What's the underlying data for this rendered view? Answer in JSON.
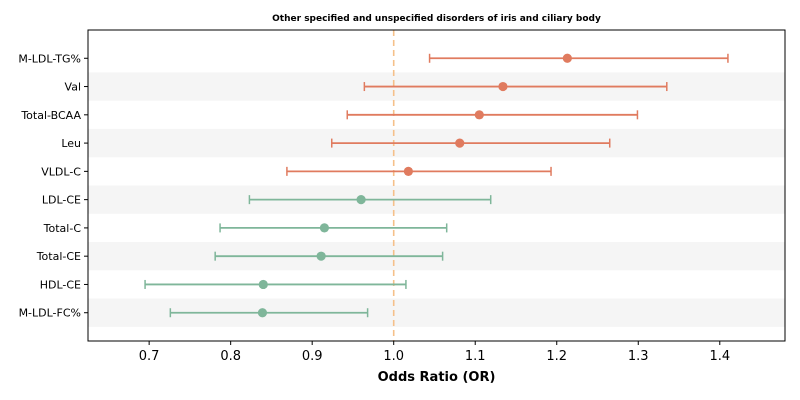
{
  "chart_data": {
    "type": "forest",
    "title": "Other specified and unspecified disorders of iris and ciliary body",
    "xlabel": "Odds Ratio (OR)",
    "ylabel": "",
    "xlim": [
      0.625,
      1.48
    ],
    "xticks": [
      "0.7",
      "0.8",
      "0.9",
      "1.0",
      "1.1",
      "1.2",
      "1.3",
      "1.4"
    ],
    "reference_line": 1.0,
    "grid": false,
    "alternating_row_shading": true,
    "colors": {
      "above_one": "#e07b5f",
      "below_one": "#7fb69a",
      "reference": "#f5c08a",
      "row_shade": "#f5f5f5"
    },
    "rows": [
      {
        "label": "M-LDL-TG%",
        "or": 1.213,
        "lo": 1.044,
        "hi": 1.41
      },
      {
        "label": "Val",
        "or": 1.134,
        "lo": 0.964,
        "hi": 1.335
      },
      {
        "label": "Total-BCAA",
        "or": 1.105,
        "lo": 0.943,
        "hi": 1.299
      },
      {
        "label": "Leu",
        "or": 1.081,
        "lo": 0.924,
        "hi": 1.265
      },
      {
        "label": "VLDL-C",
        "or": 1.018,
        "lo": 0.869,
        "hi": 1.193
      },
      {
        "label": "LDL-CE",
        "or": 0.96,
        "lo": 0.823,
        "hi": 1.119
      },
      {
        "label": "Total-C",
        "or": 0.915,
        "lo": 0.787,
        "hi": 1.065
      },
      {
        "label": "Total-CE",
        "or": 0.911,
        "lo": 0.781,
        "hi": 1.06
      },
      {
        "label": "HDL-CE",
        "or": 0.84,
        "lo": 0.695,
        "hi": 1.015
      },
      {
        "label": "M-LDL-FC%",
        "or": 0.839,
        "lo": 0.726,
        "hi": 0.968
      }
    ]
  }
}
